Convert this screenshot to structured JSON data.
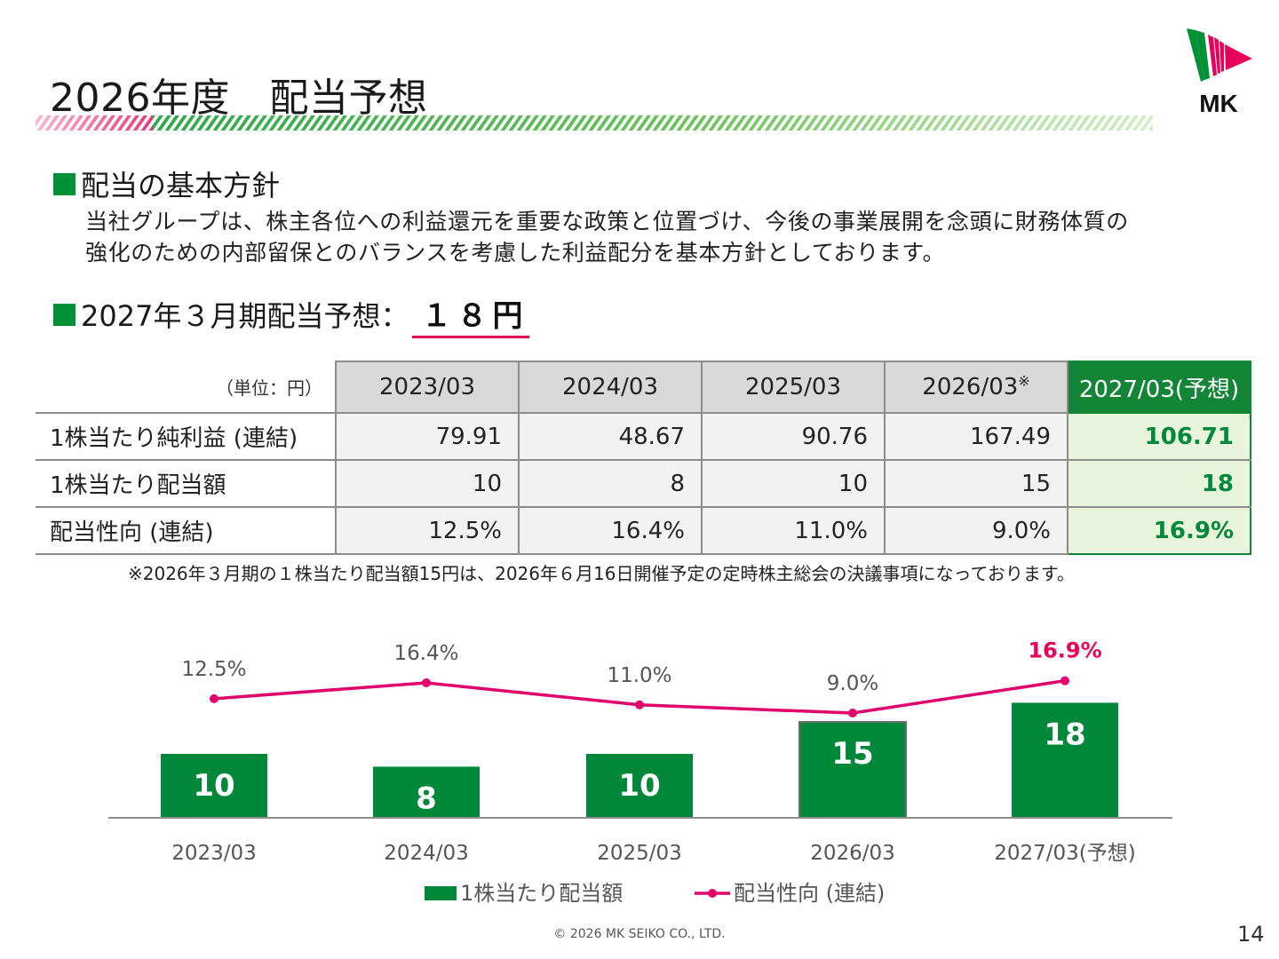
{
  "title": "2026年度　配当予想",
  "section1": {
    "heading": "配当の基本方針",
    "body_line1": "当社グループは、株主各位への利益還元を重要な政策と位置づけ、今後の事業展開を念頭に財務体質の",
    "body_line2": "強化のための内部留保とのバランスを考慮した利益配分を基本方針としております。"
  },
  "section2": {
    "heading": "2027年３月期配当予想：",
    "value": "１８円"
  },
  "table": {
    "unit": "（単位：円）",
    "headers": [
      "2023/03",
      "2024/03",
      "2025/03",
      "2026/03",
      "2027/03(予想)"
    ],
    "header_note_mark": "※",
    "rows": [
      {
        "label": "1株当たり純利益 (連結)",
        "values": [
          "79.91",
          "48.67",
          "90.76",
          "167.49",
          "106.71"
        ]
      },
      {
        "label": "1株当たり配当額",
        "values": [
          "10",
          "8",
          "10",
          "15",
          "18"
        ]
      },
      {
        "label": "配当性向 (連結)",
        "values": [
          "12.5%",
          "16.4%",
          "11.0%",
          "9.0%",
          "16.9%"
        ]
      }
    ]
  },
  "note": "※2026年３月期の１株当たり配当額15円は、2026年６月16日開催予定の定時株主総会の決議事項になっております。",
  "chart_data": {
    "type": "bar",
    "categories": [
      "2023/03",
      "2024/03",
      "2025/03",
      "2026/03",
      "2027/03(予想)"
    ],
    "series": [
      {
        "name": "1株当たり配当額",
        "type": "bar",
        "values": [
          10,
          8,
          10,
          15,
          18
        ],
        "labels": [
          "10",
          "8",
          "10",
          "15",
          "18"
        ],
        "color": "#00883a"
      },
      {
        "name": "配当性向 (連結)",
        "type": "line",
        "values": [
          12.5,
          16.4,
          11.0,
          9.0,
          16.9
        ],
        "labels": [
          "12.5%",
          "16.4%",
          "11.0%",
          "9.0%",
          "16.9%"
        ],
        "color": "#e0006c"
      }
    ],
    "legend_position": "bottom",
    "grid": false
  },
  "colors": {
    "green": "#009035",
    "pink": "#e6005a",
    "line_pink": "#e0006c",
    "last_label_pink": "#e6005a"
  },
  "logo_text": "MK",
  "footer": "© 2026 MK SEIKO CO., LTD.",
  "page_number": "14"
}
